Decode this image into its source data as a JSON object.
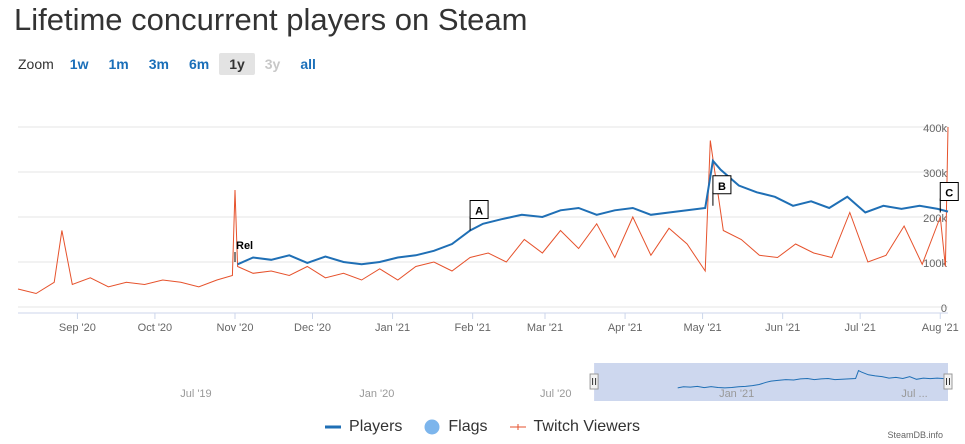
{
  "page": {
    "title": "Lifetime concurrent players on Steam",
    "zoom_label": "Zoom",
    "zoom_buttons": [
      "1w",
      "1m",
      "3m",
      "6m",
      "1y",
      "3y",
      "all"
    ],
    "zoom_selected": "1y",
    "zoom_disabled": [
      "3y"
    ],
    "credits": "SteamDB.info"
  },
  "colors": {
    "players": "#1f6fb5",
    "flags": "#7cb5ec",
    "twitch": "#e6522c",
    "navigator_mask": "#c8d3ec",
    "axis_text": "#666666",
    "grid": "#e6e6e6"
  },
  "legend": [
    {
      "name": "Players",
      "symbol": "line",
      "color": "#1f6fb5"
    },
    {
      "name": "Flags",
      "symbol": "circle",
      "color": "#7cb5ec"
    },
    {
      "name": "Twitch Viewers",
      "symbol": "line-marker",
      "color": "#e6522c"
    }
  ],
  "chart_data": {
    "type": "line",
    "x_ticks": [
      "Sep '20",
      "Oct '20",
      "Nov '20",
      "Dec '20",
      "Jan '21",
      "Feb '21",
      "Mar '21",
      "Apr '21",
      "May '21",
      "Jun '21",
      "Jul '21",
      "Aug '21"
    ],
    "y_ticks": [
      "0",
      "100k",
      "200k",
      "300k",
      "400k"
    ],
    "ylim": [
      0,
      400000
    ],
    "grid": true,
    "legend_position": "bottom",
    "series": [
      {
        "name": "Players",
        "x": [
          "2020-11-02",
          "2020-11-08",
          "2020-11-15",
          "2020-11-22",
          "2020-11-29",
          "2020-12-06",
          "2020-12-13",
          "2020-12-20",
          "2020-12-27",
          "2021-01-03",
          "2021-01-10",
          "2021-01-17",
          "2021-01-24",
          "2021-01-31",
          "2021-02-05",
          "2021-02-12",
          "2021-02-20",
          "2021-02-28",
          "2021-03-07",
          "2021-03-14",
          "2021-03-21",
          "2021-03-28",
          "2021-04-04",
          "2021-04-11",
          "2021-04-18",
          "2021-04-25",
          "2021-05-02",
          "2021-05-05",
          "2021-05-08",
          "2021-05-15",
          "2021-05-22",
          "2021-05-29",
          "2021-06-05",
          "2021-06-12",
          "2021-06-19",
          "2021-06-26",
          "2021-07-03",
          "2021-07-10",
          "2021-07-17",
          "2021-07-24",
          "2021-07-31",
          "2021-08-04"
        ],
        "y": [
          95000,
          110000,
          105000,
          115000,
          98000,
          112000,
          100000,
          95000,
          100000,
          110000,
          115000,
          125000,
          140000,
          170000,
          185000,
          195000,
          205000,
          200000,
          215000,
          220000,
          205000,
          215000,
          220000,
          205000,
          210000,
          215000,
          220000,
          325000,
          305000,
          270000,
          255000,
          245000,
          225000,
          235000,
          220000,
          245000,
          210000,
          225000,
          218000,
          225000,
          218000,
          212000
        ]
      },
      {
        "name": "Twitch Viewers",
        "x": [
          "2020-08-09",
          "2020-08-16",
          "2020-08-23",
          "2020-08-26",
          "2020-08-30",
          "2020-09-06",
          "2020-09-13",
          "2020-09-20",
          "2020-09-27",
          "2020-10-04",
          "2020-10-11",
          "2020-10-18",
          "2020-10-25",
          "2020-10-31",
          "2020-11-01",
          "2020-11-02",
          "2020-11-08",
          "2020-11-15",
          "2020-11-22",
          "2020-11-29",
          "2020-12-06",
          "2020-12-13",
          "2020-12-20",
          "2020-12-27",
          "2021-01-03",
          "2021-01-10",
          "2021-01-17",
          "2021-01-24",
          "2021-01-31",
          "2021-02-07",
          "2021-02-14",
          "2021-02-21",
          "2021-02-28",
          "2021-03-07",
          "2021-03-14",
          "2021-03-21",
          "2021-03-28",
          "2021-04-04",
          "2021-04-11",
          "2021-04-18",
          "2021-04-25",
          "2021-05-02",
          "2021-05-04",
          "2021-05-09",
          "2021-05-16",
          "2021-05-23",
          "2021-05-30",
          "2021-06-06",
          "2021-06-13",
          "2021-06-20",
          "2021-06-27",
          "2021-07-04",
          "2021-07-11",
          "2021-07-18",
          "2021-07-25",
          "2021-08-01",
          "2021-08-03",
          "2021-08-04"
        ],
        "y": [
          40000,
          30000,
          55000,
          170000,
          50000,
          65000,
          45000,
          55000,
          50000,
          60000,
          55000,
          45000,
          60000,
          70000,
          260000,
          90000,
          75000,
          80000,
          70000,
          90000,
          65000,
          75000,
          60000,
          85000,
          60000,
          90000,
          100000,
          80000,
          110000,
          120000,
          100000,
          150000,
          120000,
          170000,
          130000,
          185000,
          110000,
          200000,
          115000,
          175000,
          140000,
          80000,
          370000,
          170000,
          150000,
          115000,
          110000,
          140000,
          120000,
          110000,
          210000,
          100000,
          115000,
          180000,
          95000,
          200000,
          90000,
          400000
        ]
      },
      {
        "name": "Flags",
        "x": [
          "2020-11-01",
          "2021-01-31",
          "2021-05-05",
          "2021-08-01"
        ],
        "y": [
          100000,
          170000,
          225000,
          210000
        ],
        "labels": [
          "Rel",
          "A",
          "B",
          "C"
        ]
      }
    ],
    "navigator": {
      "x_ticks": [
        "Jul '19",
        "Jan '20",
        "Jul '20",
        "Jan '21",
        "Jul ..."
      ],
      "selected_range": [
        "2020-08-09",
        "2021-08-04"
      ]
    }
  }
}
